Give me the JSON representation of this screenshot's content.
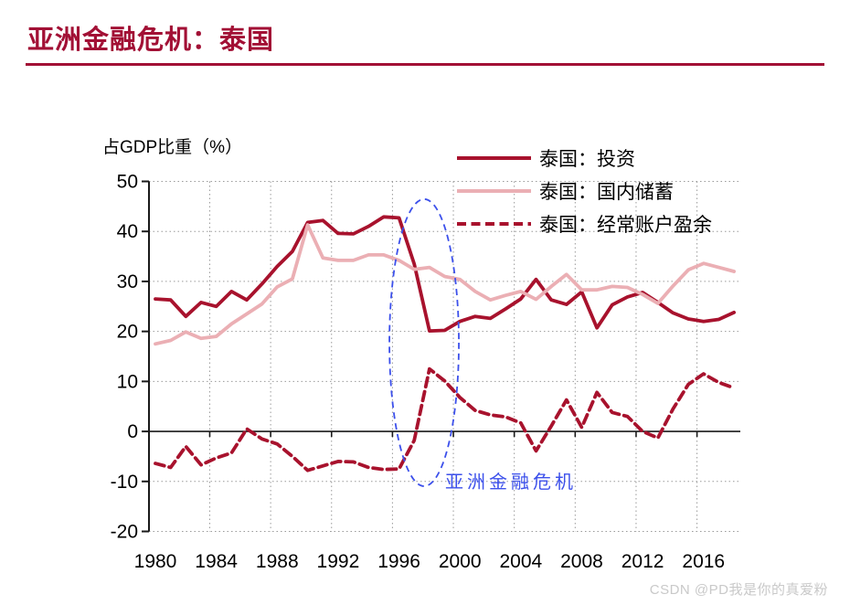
{
  "page": {
    "title": "亚洲金融危机：泰国",
    "watermark": "CSDN @PD我是你的真爱粉"
  },
  "colors": {
    "title": "#A21035",
    "investment": "#A8122D",
    "savings": "#EBAFB4",
    "current_account": "#A8122D",
    "annotation_blue": "#3C50EB",
    "grid": "#9A9A9A",
    "axis": "#1A1A1A",
    "watermark": "#C9C9C9"
  },
  "chart_data": {
    "type": "line",
    "ylabel": "占GDP比重（%）",
    "ylim": [
      -20,
      50
    ],
    "y_ticks": [
      50,
      40,
      30,
      20,
      10,
      0,
      -10,
      -20
    ],
    "x_tick_years": [
      1980,
      1984,
      1988,
      1992,
      1996,
      2000,
      2004,
      2008,
      2012,
      2016
    ],
    "grid": "dotted",
    "legend_position": "top-right",
    "x": [
      1980,
      1981,
      1982,
      1983,
      1984,
      1985,
      1986,
      1987,
      1988,
      1989,
      1990,
      1991,
      1992,
      1993,
      1994,
      1995,
      1996,
      1997,
      1998,
      1999,
      2000,
      2001,
      2002,
      2003,
      2004,
      2005,
      2006,
      2007,
      2008,
      2009,
      2010,
      2011,
      2012,
      2013,
      2014,
      2015,
      2016,
      2017,
      2018
    ],
    "series": [
      {
        "name": "泰国：投资",
        "style": "solid",
        "color_key": "investment",
        "values": [
          26.5,
          26.3,
          23.0,
          25.8,
          25.0,
          28.0,
          26.3,
          29.5,
          33.0,
          36.0,
          41.8,
          42.2,
          39.6,
          39.5,
          41.0,
          42.9,
          42.7,
          33.5,
          20.1,
          20.2,
          22.0,
          23.0,
          22.6,
          24.5,
          26.5,
          30.4,
          26.3,
          25.4,
          27.9,
          20.7,
          25.3,
          26.9,
          27.8,
          25.8,
          23.7,
          22.5,
          22.0,
          22.4,
          23.8
        ]
      },
      {
        "name": "泰国：国内储蓄",
        "style": "solid",
        "color_key": "savings",
        "values": [
          17.5,
          18.2,
          19.9,
          18.6,
          19.0,
          21.5,
          23.5,
          25.5,
          28.9,
          30.5,
          41.3,
          34.7,
          34.2,
          34.2,
          35.3,
          35.3,
          34.2,
          32.4,
          32.8,
          31.0,
          30.4,
          28.0,
          26.3,
          27.2,
          28.0,
          26.4,
          29.0,
          31.4,
          28.3,
          28.3,
          29.0,
          28.8,
          27.4,
          25.6,
          29.1,
          32.3,
          33.6,
          32.8,
          32.0
        ]
      },
      {
        "name": "泰国：经常账户盈余",
        "style": "dashed",
        "color_key": "current_account",
        "values": [
          -6.4,
          -7.2,
          -3.0,
          -6.7,
          -5.3,
          -4.3,
          0.5,
          -1.5,
          -2.5,
          -5.0,
          -7.8,
          -6.9,
          -6.0,
          -6.1,
          -7.2,
          -7.6,
          -7.5,
          -1.8,
          12.5,
          10.1,
          6.8,
          4.2,
          3.3,
          2.9,
          1.7,
          -3.9,
          1.1,
          6.3,
          0.8,
          7.8,
          3.8,
          3.0,
          0.0,
          -1.3,
          4.5,
          9.4,
          11.5,
          9.8,
          8.7
        ]
      }
    ],
    "annotation": {
      "text": "亚洲金融危机",
      "ellipse": {
        "center_year": 1997.65,
        "center_value": 17.75,
        "rx_years": 2.28,
        "ry_values": 28.7
      },
      "text_anchor_year": 1999.1,
      "text_anchor_value": -10.4
    }
  }
}
